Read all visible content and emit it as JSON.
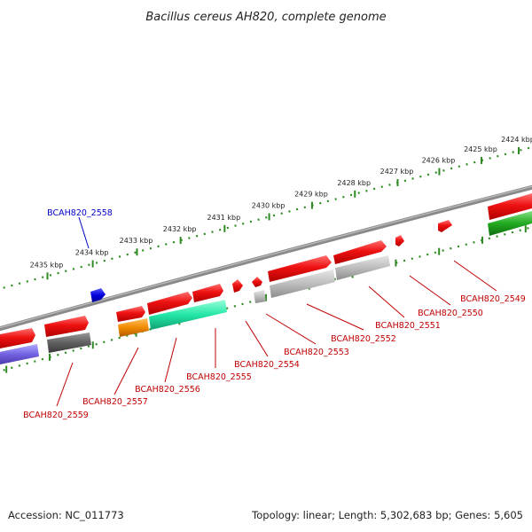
{
  "title": "Bacillus cereus AH820, complete genome",
  "footer": {
    "accession": "Accession: NC_011773",
    "summary": "Topology: linear; Length: 5,302,683 bp; Genes: 5,605"
  },
  "scale": {
    "unit": "kbp",
    "ticks": [
      {
        "value": 2424,
        "label": "2424 kbp"
      },
      {
        "value": 2425,
        "label": "2425 kbp"
      },
      {
        "value": 2426,
        "label": "2426 kbp"
      },
      {
        "value": 2427,
        "label": "2427 kbp"
      },
      {
        "value": 2428,
        "label": "2428 kbp"
      },
      {
        "value": 2429,
        "label": "2429 kbp"
      },
      {
        "value": 2430,
        "label": "2430 kbp"
      },
      {
        "value": 2431,
        "label": "2431 kbp"
      },
      {
        "value": 2432,
        "label": "2432 kbp"
      },
      {
        "value": 2433,
        "label": "2433 kbp"
      },
      {
        "value": 2434,
        "label": "2434 kbp"
      },
      {
        "value": 2435,
        "label": "2435 kbp"
      }
    ]
  },
  "colors": {
    "backbone": "#808080",
    "scale": "#2e8b22",
    "forward_gene": "#ee1111",
    "rna_gene": "#0000dd",
    "label_red": "#c00000",
    "label_blue": "#0000c8"
  },
  "gene_labels": [
    {
      "id": "BCAH820_2549",
      "color": "red"
    },
    {
      "id": "BCAH820_2550",
      "color": "red"
    },
    {
      "id": "BCAH820_2551",
      "color": "red"
    },
    {
      "id": "BCAH820_2552",
      "color": "red"
    },
    {
      "id": "BCAH820_2553",
      "color": "red"
    },
    {
      "id": "BCAH820_2554",
      "color": "red"
    },
    {
      "id": "BCAH820_2555",
      "color": "red"
    },
    {
      "id": "BCAH820_2556",
      "color": "red"
    },
    {
      "id": "BCAH820_2557",
      "color": "red"
    },
    {
      "id": "BCAH820_2558",
      "color": "blue"
    },
    {
      "id": "BCAH820_2559",
      "color": "red"
    }
  ]
}
